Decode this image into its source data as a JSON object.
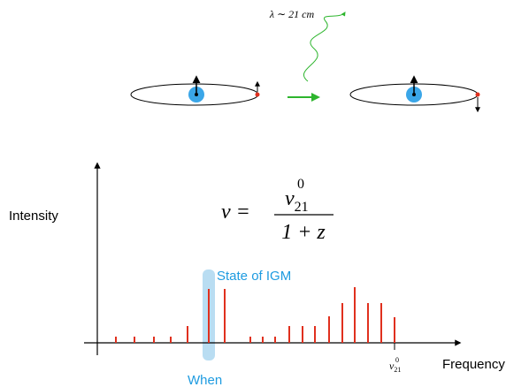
{
  "top": {
    "wavelength_label": "λ ∼ 21 cm"
  },
  "formula": {
    "lhs": "ν =",
    "numerator": "ν",
    "numerator_sub": "21",
    "numerator_sup": "0",
    "denominator": "1 + z"
  },
  "chart": {
    "y_label": "Intensity",
    "x_label": "Frequency",
    "tick_label": "ν",
    "tick_sub": "21",
    "tick_sup": "0",
    "highlight_label": "State of IGM",
    "highlight_bottom_label": "When"
  }
}
